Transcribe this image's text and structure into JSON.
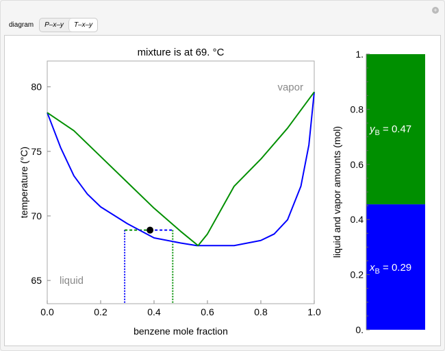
{
  "controls": {
    "label": "diagram",
    "options": [
      "P–x–y",
      "T–x–y"
    ],
    "selected": "T–x–y"
  },
  "chart_data": [
    {
      "type": "line",
      "title": "mixture is at 69. °C",
      "xlabel": "benzene mole fraction",
      "ylabel": "temperature (°C)",
      "xlim": [
        0,
        1
      ],
      "ylim": [
        63.2,
        82
      ],
      "xticks": [
        "0.0",
        "0.2",
        "0.4",
        "0.6",
        "0.8",
        "1.0"
      ],
      "yticks": [
        "65",
        "70",
        "75",
        "80"
      ],
      "region_labels": {
        "vapor": "vapor",
        "liquid": "liquid"
      },
      "series": [
        {
          "role": "liquid (bubble) curve",
          "color": "#0000ff",
          "x": [
            0,
            0.05,
            0.1,
            0.15,
            0.2,
            0.3,
            0.4,
            0.5,
            0.56,
            0.7,
            0.8,
            0.85,
            0.9,
            0.95,
            0.98,
            1.0
          ],
          "y": [
            78,
            75.3,
            73.1,
            71.7,
            70.7,
            69.4,
            68.3,
            67.9,
            67.7,
            67.7,
            68.1,
            68.6,
            69.7,
            72.3,
            75.5,
            79.6
          ]
        },
        {
          "role": "vapor (dew) curve",
          "color": "#008f00",
          "x": [
            0,
            0.1,
            0.2,
            0.3,
            0.4,
            0.5,
            0.565,
            0.6,
            0.7,
            0.8,
            0.9,
            1.0
          ],
          "y": [
            78,
            76.6,
            74.6,
            72.6,
            70.6,
            68.8,
            67.7,
            68.6,
            72.3,
            74.4,
            76.8,
            79.6
          ]
        }
      ],
      "state_point": {
        "x": 0.385,
        "y": 68.9
      },
      "tie_line": {
        "T": 68.9,
        "xB": 0.29,
        "yB": 0.47
      }
    },
    {
      "type": "bar",
      "ylabel": "liquid and vapor amounts (mol)",
      "ylim": [
        0,
        1
      ],
      "yticks": [
        "0.",
        "0.2",
        "0.4",
        "0.6",
        "0.8",
        "1."
      ],
      "liquid_amount": 0.455,
      "vapor_amount": 0.545,
      "liquid_color": "#0000ff",
      "vapor_color": "#008f00",
      "labels": {
        "x_sym": "x",
        "y_sym": "y",
        "sub": "B",
        "x_text": " = 0.29",
        "y_text": " = 0.47"
      }
    }
  ]
}
